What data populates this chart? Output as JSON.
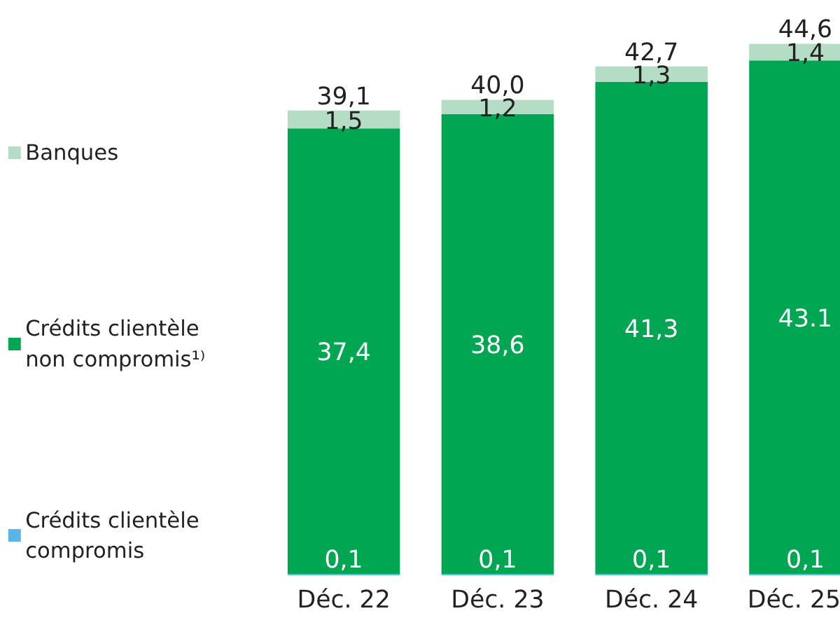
{
  "chart_data": {
    "type": "bar",
    "stacked": true,
    "legend": "left",
    "categories": [
      "Déc. 22",
      "Déc. 23",
      "Déc. 24",
      "Déc. 25"
    ],
    "series": [
      {
        "name": "Crédits clientèle compromis",
        "color": "#5ab4e5",
        "values": [
          0.1,
          0.1,
          0.1,
          0.1
        ],
        "value_labels": [
          "0,1",
          "0,1",
          "0,1",
          "0,1"
        ]
      },
      {
        "name": "Crédits clientèle non compromis¹⁾",
        "color": "#00a651",
        "values": [
          37.4,
          38.6,
          41.3,
          43.1
        ],
        "value_labels": [
          "37,4",
          "38,6",
          "41,3",
          "43.1"
        ]
      },
      {
        "name": "Banques",
        "color": "#b5dcc4",
        "values": [
          1.5,
          1.2,
          1.3,
          1.4
        ],
        "value_labels": [
          "1,5",
          "1,2",
          "1,3",
          "1,4"
        ]
      }
    ],
    "totals": [
      "39,1",
      "40,0",
      "42,7",
      "44,6"
    ]
  }
}
